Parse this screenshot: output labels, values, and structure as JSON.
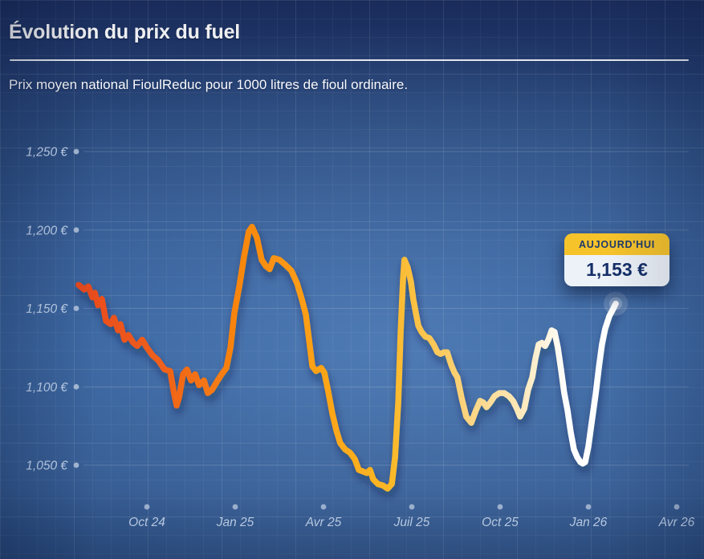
{
  "header": {
    "title": "Évolution du prix du fuel",
    "subtitle": "Prix moyen national FioulReduc pour 1000 litres de fioul ordinaire."
  },
  "tooltip": {
    "label": "AUJOURD'HUI",
    "value": "1,153 €"
  },
  "colors": {
    "background_top": "#1b2e5f",
    "background_mid": "#35609b",
    "tooltip_header": "#f7c32b",
    "tooltip_body": "#edf2f8",
    "tooltip_text": "#1d3a6b",
    "axis_label": "#c6d8f0",
    "line_start": "#e8491c",
    "line_end": "#ffffff"
  },
  "chart_data": {
    "type": "line",
    "title": "",
    "xlabel": "",
    "ylabel": "",
    "unit": "€",
    "grid": true,
    "legend": "none",
    "ylim": [
      1035,
      1250
    ],
    "x_ticks": [
      {
        "label": "Oct 24",
        "m": 0
      },
      {
        "label": "Jan 25",
        "m": 3
      },
      {
        "label": "Avr 25",
        "m": 6
      },
      {
        "label": "Juil 25",
        "m": 9
      },
      {
        "label": "Oct 25",
        "m": 12
      },
      {
        "label": "Jan 26",
        "m": 15
      },
      {
        "label": "Avr 26",
        "m": 18
      }
    ],
    "y_ticks": [
      {
        "label": "1,250 €",
        "value": 1250
      },
      {
        "label": "1,200 €",
        "value": 1200
      },
      {
        "label": "1,150 €",
        "value": 1150
      },
      {
        "label": "1,100 €",
        "value": 1100
      },
      {
        "label": "1,050 €",
        "value": 1050
      }
    ],
    "today": {
      "label": "AUJOURD'HUI",
      "price": 1153,
      "display": "1,153 €",
      "m": 15.93
    },
    "line_gradient": [
      {
        "offset": 0.0,
        "color": "#e8491c"
      },
      {
        "offset": 0.15,
        "color": "#ef5f1b"
      },
      {
        "offset": 0.3,
        "color": "#f8860f"
      },
      {
        "offset": 0.45,
        "color": "#fca316"
      },
      {
        "offset": 0.58,
        "color": "#fbb827"
      },
      {
        "offset": 0.68,
        "color": "#fbcb63"
      },
      {
        "offset": 0.77,
        "color": "#fbdd9b"
      },
      {
        "offset": 0.84,
        "color": "#fdecc5"
      },
      {
        "offset": 0.91,
        "color": "#ffffff"
      },
      {
        "offset": 1.0,
        "color": "#ffffff"
      }
    ],
    "series": [
      {
        "name": "Prix moyen national fioul ordinaire (€ / 1000 L)",
        "points": [
          [
            -2.32,
            1165
          ],
          [
            -2.13,
            1162
          ],
          [
            -1.99,
            1164
          ],
          [
            -1.85,
            1157
          ],
          [
            -1.77,
            1160
          ],
          [
            -1.66,
            1152
          ],
          [
            -1.53,
            1156
          ],
          [
            -1.39,
            1142
          ],
          [
            -1.23,
            1140
          ],
          [
            -1.12,
            1144
          ],
          [
            -0.98,
            1136
          ],
          [
            -0.9,
            1140
          ],
          [
            -0.76,
            1130
          ],
          [
            -0.63,
            1133
          ],
          [
            -0.46,
            1128
          ],
          [
            -0.33,
            1126
          ],
          [
            -0.16,
            1130
          ],
          [
            0.0,
            1125
          ],
          [
            0.19,
            1120
          ],
          [
            0.38,
            1117
          ],
          [
            0.6,
            1111
          ],
          [
            0.79,
            1110
          ],
          [
            0.9,
            1098
          ],
          [
            1.01,
            1088
          ],
          [
            1.09,
            1093
          ],
          [
            1.23,
            1108
          ],
          [
            1.36,
            1111
          ],
          [
            1.5,
            1104
          ],
          [
            1.64,
            1108
          ],
          [
            1.77,
            1101
          ],
          [
            1.94,
            1104
          ],
          [
            2.07,
            1096
          ],
          [
            2.21,
            1098
          ],
          [
            2.37,
            1103
          ],
          [
            2.54,
            1108
          ],
          [
            2.7,
            1112
          ],
          [
            2.84,
            1125
          ],
          [
            2.97,
            1147
          ],
          [
            3.14,
            1164
          ],
          [
            3.3,
            1183
          ],
          [
            3.46,
            1199
          ],
          [
            3.57,
            1202
          ],
          [
            3.74,
            1195
          ],
          [
            3.9,
            1181
          ],
          [
            4.04,
            1177
          ],
          [
            4.17,
            1175
          ],
          [
            4.31,
            1182
          ],
          [
            4.5,
            1181
          ],
          [
            4.69,
            1178
          ],
          [
            4.91,
            1174
          ],
          [
            5.1,
            1166
          ],
          [
            5.26,
            1156
          ],
          [
            5.4,
            1146
          ],
          [
            5.51,
            1130
          ],
          [
            5.62,
            1113
          ],
          [
            5.75,
            1110
          ],
          [
            5.92,
            1112
          ],
          [
            6.03,
            1109
          ],
          [
            6.16,
            1097
          ],
          [
            6.3,
            1083
          ],
          [
            6.44,
            1072
          ],
          [
            6.57,
            1064
          ],
          [
            6.74,
            1060
          ],
          [
            6.9,
            1058
          ],
          [
            7.06,
            1054
          ],
          [
            7.2,
            1047
          ],
          [
            7.34,
            1046
          ],
          [
            7.47,
            1045
          ],
          [
            7.58,
            1047
          ],
          [
            7.69,
            1041
          ],
          [
            7.85,
            1038
          ],
          [
            8.02,
            1037
          ],
          [
            8.18,
            1035
          ],
          [
            8.32,
            1038
          ],
          [
            8.43,
            1055
          ],
          [
            8.54,
            1090
          ],
          [
            8.62,
            1135
          ],
          [
            8.7,
            1168
          ],
          [
            8.75,
            1181
          ],
          [
            8.86,
            1176
          ],
          [
            8.97,
            1167
          ],
          [
            9.05,
            1156
          ],
          [
            9.14,
            1147
          ],
          [
            9.22,
            1139
          ],
          [
            9.33,
            1135
          ],
          [
            9.46,
            1132
          ],
          [
            9.6,
            1131
          ],
          [
            9.74,
            1127
          ],
          [
            9.87,
            1122
          ],
          [
            9.98,
            1121
          ],
          [
            10.09,
            1122
          ],
          [
            10.2,
            1122
          ],
          [
            10.34,
            1114
          ],
          [
            10.45,
            1109
          ],
          [
            10.55,
            1106
          ],
          [
            10.69,
            1093
          ],
          [
            10.85,
            1081
          ],
          [
            11.02,
            1077
          ],
          [
            11.18,
            1085
          ],
          [
            11.32,
            1091
          ],
          [
            11.43,
            1090
          ],
          [
            11.54,
            1087
          ],
          [
            11.67,
            1090
          ],
          [
            11.81,
            1094
          ],
          [
            11.97,
            1096
          ],
          [
            12.14,
            1096
          ],
          [
            12.3,
            1094
          ],
          [
            12.44,
            1091
          ],
          [
            12.57,
            1086
          ],
          [
            12.68,
            1081
          ],
          [
            12.82,
            1086
          ],
          [
            12.95,
            1098
          ],
          [
            13.09,
            1106
          ],
          [
            13.2,
            1118
          ],
          [
            13.31,
            1127
          ],
          [
            13.42,
            1128
          ],
          [
            13.53,
            1126
          ],
          [
            13.64,
            1130
          ],
          [
            13.75,
            1136
          ],
          [
            13.85,
            1135
          ],
          [
            13.96,
            1125
          ],
          [
            14.07,
            1111
          ],
          [
            14.18,
            1096
          ],
          [
            14.29,
            1085
          ],
          [
            14.4,
            1071
          ],
          [
            14.51,
            1060
          ],
          [
            14.62,
            1055
          ],
          [
            14.73,
            1052
          ],
          [
            14.81,
            1051
          ],
          [
            14.89,
            1052
          ],
          [
            15.0,
            1062
          ],
          [
            15.11,
            1077
          ],
          [
            15.25,
            1096
          ],
          [
            15.36,
            1113
          ],
          [
            15.46,
            1127
          ],
          [
            15.57,
            1137
          ],
          [
            15.71,
            1145
          ],
          [
            15.82,
            1149
          ],
          [
            15.93,
            1153
          ]
        ]
      }
    ]
  }
}
